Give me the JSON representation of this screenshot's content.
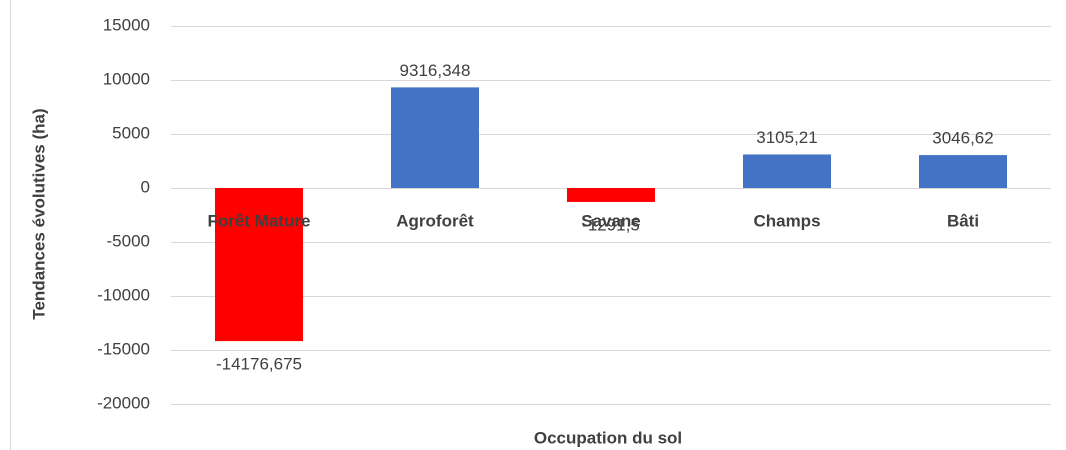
{
  "chart_data": {
    "type": "bar",
    "categories": [
      "Forêt Mature",
      "Agroforêt",
      "Savane",
      "Champs",
      "Bâti"
    ],
    "values": [
      -14176.675,
      9316.348,
      -1291.5,
      3105.21,
      3046.62
    ],
    "value_labels": [
      "-14176,675",
      "9316,348",
      "-1291,5",
      "3105,21",
      "3046,62"
    ],
    "colors": [
      "#ff0000",
      "#4472c4",
      "#ff0000",
      "#4472c4",
      "#4472c4"
    ],
    "x_label": "Occupation du sol",
    "y_label": "Tendances évolutives (ha)",
    "ylim": [
      -20000,
      15000
    ],
    "yticks": [
      -20000,
      -15000,
      -10000,
      -5000,
      0,
      5000,
      10000,
      15000
    ],
    "grid": true
  }
}
